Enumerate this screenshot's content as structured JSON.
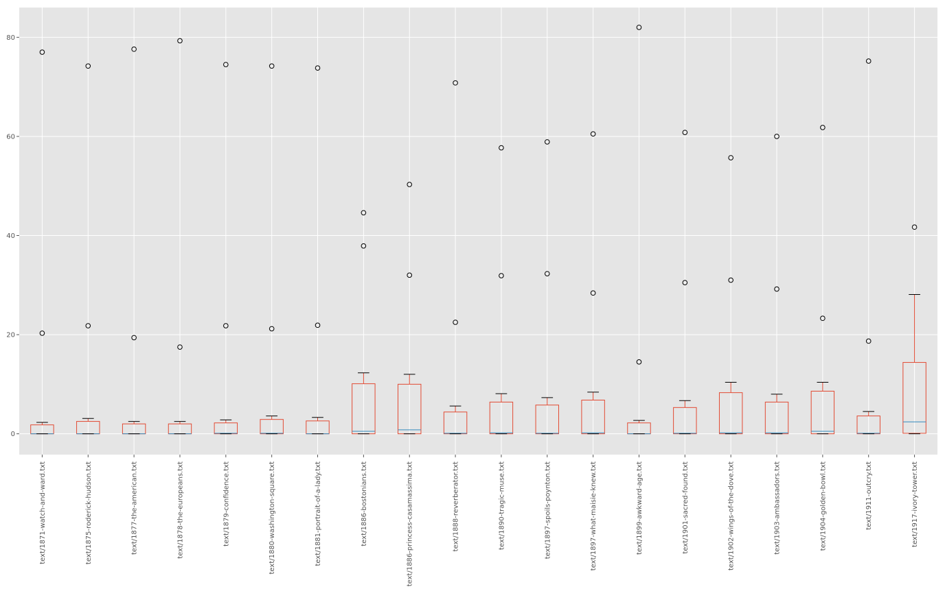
{
  "chart_data": {
    "type": "boxplot",
    "title": "",
    "xlabel": "",
    "ylabel": "",
    "ylim": [
      -4.2,
      86
    ],
    "yticks": [
      0,
      20,
      40,
      60,
      80
    ],
    "grid": true,
    "style": "ggplot",
    "colors": {
      "panel_bg": "#e5e5e5",
      "grid": "#ffffff",
      "box": "#e24a33",
      "median": "#348abd",
      "whisker": "#e24a33",
      "cap": "#000000",
      "flier": "#000000"
    },
    "categories": [
      "text/1871-watch-and-ward.txt",
      "text/1875-roderick-hudson.txt",
      "text/1877-the-american.txt",
      "text/1878-the-europeans.txt",
      "text/1879-confidence.txt",
      "text/1880-washington-square.txt",
      "text/1881-portrait-of-a-lady.txt",
      "text/1886-bostonians.txt",
      "text/1886-princess-casamassima.txt",
      "text/1888-reverberator.txt",
      "text/1890-tragic-muse.txt",
      "text/1897-spoils-poynton.txt",
      "text/1897-what-maisie-knew.txt",
      "text/1899-awkward-age.txt",
      "text/1901-sacred-found.txt",
      "text/1902-wings-of-the-dove.txt",
      "text/1903-ambassadors.txt",
      "text/1904-golden-bowl.txt",
      "text/1911-outcry.txt",
      "text/1917-ivory-tower.txt"
    ],
    "boxes": [
      {
        "whislo": 0,
        "q1": 0,
        "med": 0,
        "q3": 1.8,
        "whishi": 2.3,
        "fliers": [
          20.3,
          77.0
        ]
      },
      {
        "whislo": 0,
        "q1": 0,
        "med": 0,
        "q3": 2.5,
        "whishi": 3.1,
        "fliers": [
          21.8,
          74.2
        ]
      },
      {
        "whislo": 0,
        "q1": 0,
        "med": 0,
        "q3": 2.0,
        "whishi": 2.5,
        "fliers": [
          19.4,
          77.6
        ]
      },
      {
        "whislo": 0,
        "q1": 0,
        "med": 0,
        "q3": 2.0,
        "whishi": 2.5,
        "fliers": [
          17.5,
          79.3
        ]
      },
      {
        "whislo": 0,
        "q1": 0,
        "med": 0.1,
        "q3": 2.2,
        "whishi": 2.8,
        "fliers": [
          21.8,
          74.5
        ]
      },
      {
        "whislo": 0,
        "q1": 0,
        "med": 0.1,
        "q3": 2.9,
        "whishi": 3.6,
        "fliers": [
          21.2,
          74.2
        ]
      },
      {
        "whislo": 0,
        "q1": 0,
        "med": 0,
        "q3": 2.6,
        "whishi": 3.3,
        "fliers": [
          21.9,
          73.8
        ]
      },
      {
        "whislo": 0,
        "q1": 0,
        "med": 0.5,
        "q3": 10.1,
        "whishi": 12.3,
        "fliers": [
          37.9,
          44.6
        ]
      },
      {
        "whislo": 0,
        "q1": 0,
        "med": 0.8,
        "q3": 10.0,
        "whishi": 12.0,
        "fliers": [
          32.0,
          50.3
        ]
      },
      {
        "whislo": 0,
        "q1": 0,
        "med": 0.1,
        "q3": 4.4,
        "whishi": 5.6,
        "fliers": [
          22.5,
          70.8
        ]
      },
      {
        "whislo": 0,
        "q1": 0,
        "med": 0.2,
        "q3": 6.4,
        "whishi": 8.1,
        "fliers": [
          31.9,
          57.7
        ]
      },
      {
        "whislo": 0,
        "q1": 0,
        "med": 0.1,
        "q3": 5.8,
        "whishi": 7.3,
        "fliers": [
          32.3,
          58.9
        ]
      },
      {
        "whislo": 0,
        "q1": 0,
        "med": 0.2,
        "q3": 6.8,
        "whishi": 8.4,
        "fliers": [
          28.4,
          60.5
        ]
      },
      {
        "whislo": 0,
        "q1": 0,
        "med": 0,
        "q3": 2.2,
        "whishi": 2.7,
        "fliers": [
          14.5,
          82.0
        ]
      },
      {
        "whislo": 0,
        "q1": 0,
        "med": 0.1,
        "q3": 5.3,
        "whishi": 6.7,
        "fliers": [
          30.5,
          60.8
        ]
      },
      {
        "whislo": 0,
        "q1": 0,
        "med": 0.2,
        "q3": 8.3,
        "whishi": 10.4,
        "fliers": [
          31.0,
          55.7
        ]
      },
      {
        "whislo": 0,
        "q1": 0,
        "med": 0.2,
        "q3": 6.4,
        "whishi": 8.0,
        "fliers": [
          29.2,
          60.0
        ]
      },
      {
        "whislo": 0,
        "q1": 0,
        "med": 0.5,
        "q3": 8.6,
        "whishi": 10.4,
        "fliers": [
          23.3,
          61.8
        ]
      },
      {
        "whislo": 0,
        "q1": 0,
        "med": 0.1,
        "q3": 3.6,
        "whishi": 4.5,
        "fliers": [
          18.7,
          75.2
        ]
      },
      {
        "whislo": 0,
        "q1": 0.1,
        "med": 2.4,
        "q3": 14.4,
        "whishi": 28.1,
        "fliers": [
          41.7
        ]
      }
    ]
  }
}
